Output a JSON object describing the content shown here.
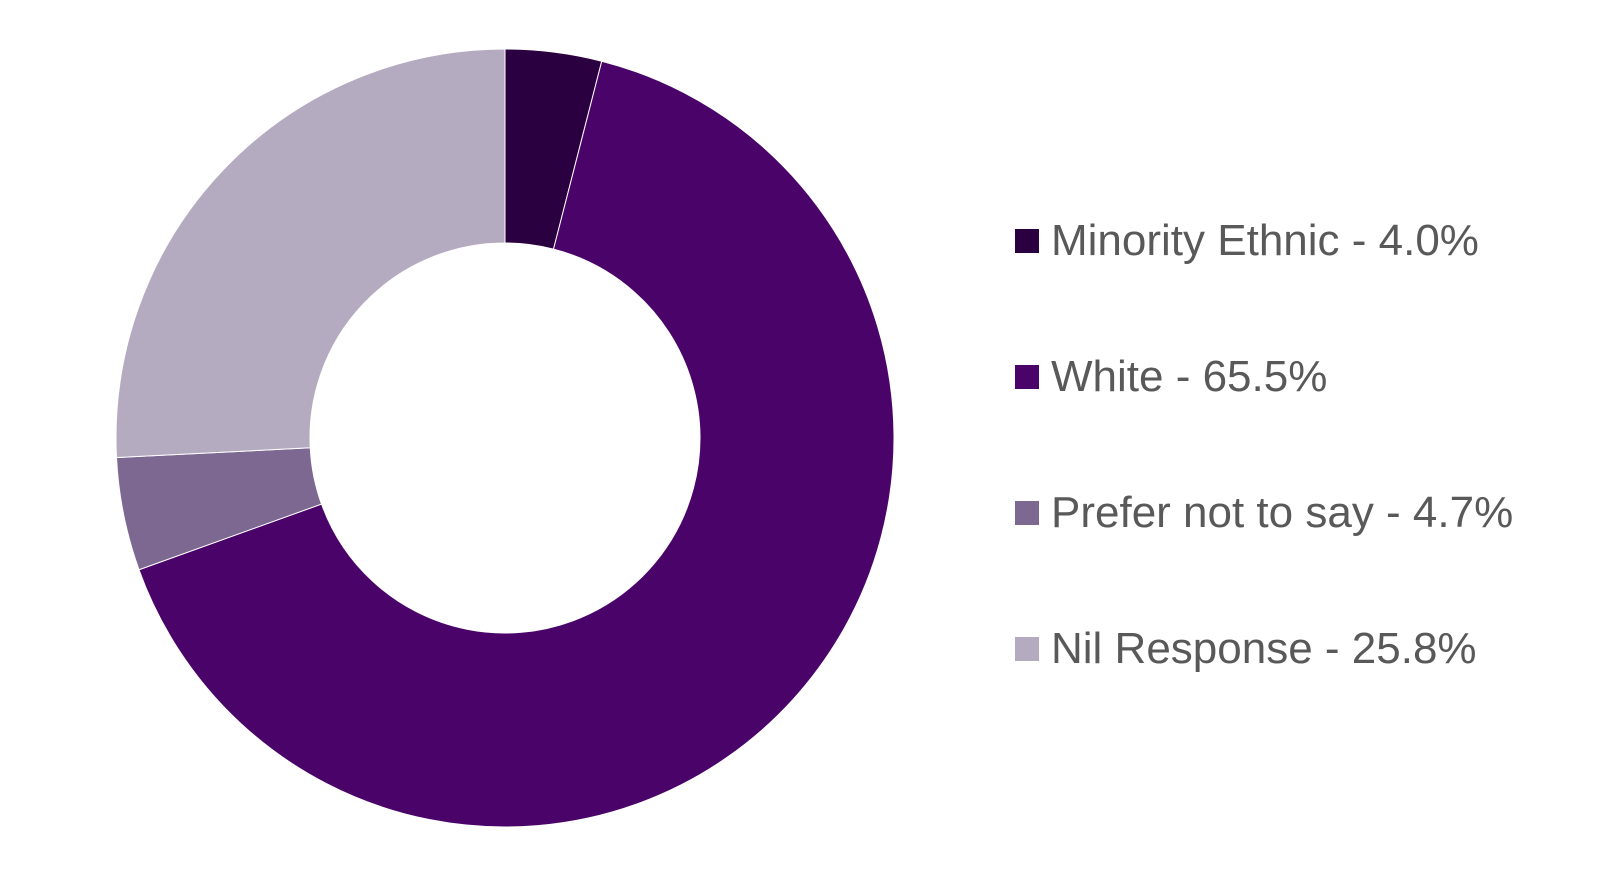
{
  "chart_data": {
    "type": "pie",
    "donut": true,
    "title": "",
    "categories": [
      "Minority Ethnic",
      "White",
      "Prefer not to say",
      "Nil Response"
    ],
    "values": [
      4.0,
      65.5,
      4.7,
      25.8
    ],
    "unit": "%",
    "colors": [
      "#2B0040",
      "#4A0469",
      "#7D6891",
      "#B5ABC1"
    ],
    "legend": {
      "placement": "right",
      "entries": [
        "Minority Ethnic - 4.0%",
        "White - 65.5%",
        "Prefer not to say - 4.7%",
        "Nil Response - 25.8%"
      ]
    },
    "start_angle": "12 o'clock",
    "direction": "clockwise"
  }
}
